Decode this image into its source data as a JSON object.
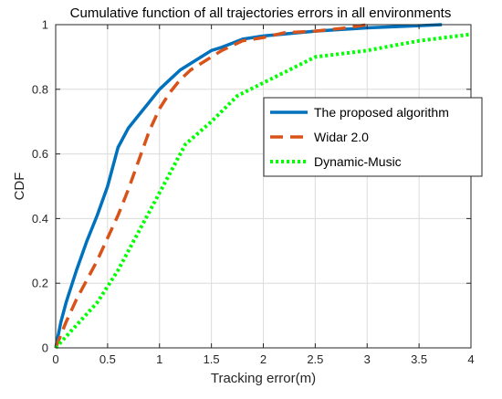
{
  "chart_data": {
    "type": "line",
    "title": "Cumulative function of all trajectories errors in all environments",
    "xlabel": "Tracking error(m)",
    "ylabel": "CDF",
    "xlim": [
      0,
      4
    ],
    "ylim": [
      0,
      1
    ],
    "xticks": [
      0,
      0.5,
      1,
      1.5,
      2,
      2.5,
      3,
      3.5,
      4
    ],
    "yticks": [
      0,
      0.2,
      0.4,
      0.6,
      0.8,
      1
    ],
    "xtick_labels": [
      "0",
      "0.5",
      "1",
      "1.5",
      "2",
      "2.5",
      "3",
      "3.5",
      "4"
    ],
    "ytick_labels": [
      "0",
      "0.2",
      "0.4",
      "0.6",
      "0.8",
      "1"
    ],
    "grid": true,
    "legend_position": "right",
    "series": [
      {
        "name": "The proposed algorithm",
        "color": "#0072BD",
        "style": "solid",
        "x": [
          0,
          0.05,
          0.1,
          0.2,
          0.3,
          0.4,
          0.5,
          0.6,
          0.7,
          0.8,
          0.9,
          1.0,
          1.1,
          1.2,
          1.3,
          1.4,
          1.5,
          1.6,
          1.8,
          2.0,
          2.5,
          3.0,
          3.5,
          3.72
        ],
        "y": [
          0,
          0.08,
          0.14,
          0.24,
          0.33,
          0.41,
          0.5,
          0.62,
          0.68,
          0.72,
          0.76,
          0.8,
          0.83,
          0.86,
          0.88,
          0.9,
          0.92,
          0.93,
          0.955,
          0.965,
          0.98,
          0.99,
          0.997,
          1.0
        ]
      },
      {
        "name": "Widar 2.0",
        "color": "#D95319",
        "style": "dashed",
        "x": [
          0,
          0.1,
          0.2,
          0.3,
          0.4,
          0.5,
          0.6,
          0.7,
          0.8,
          0.9,
          1.0,
          1.1,
          1.2,
          1.3,
          1.4,
          1.5,
          1.6,
          1.8,
          2.0,
          2.2,
          2.5,
          2.8,
          3.0
        ],
        "y": [
          0,
          0.08,
          0.15,
          0.21,
          0.27,
          0.34,
          0.41,
          0.49,
          0.58,
          0.67,
          0.74,
          0.79,
          0.83,
          0.86,
          0.88,
          0.9,
          0.92,
          0.95,
          0.96,
          0.975,
          0.98,
          0.99,
          1.0
        ]
      },
      {
        "name": "Dynamic-Music",
        "color": "#00FF00",
        "style": "dotted",
        "x": [
          0,
          0.2,
          0.4,
          0.6,
          0.8,
          1.0,
          1.2,
          1.25,
          1.5,
          1.75,
          2.0,
          2.25,
          2.5,
          3.0,
          3.5,
          4.0
        ],
        "y": [
          0,
          0.07,
          0.14,
          0.24,
          0.36,
          0.48,
          0.6,
          0.63,
          0.7,
          0.78,
          0.82,
          0.86,
          0.9,
          0.92,
          0.95,
          0.97
        ]
      }
    ]
  }
}
